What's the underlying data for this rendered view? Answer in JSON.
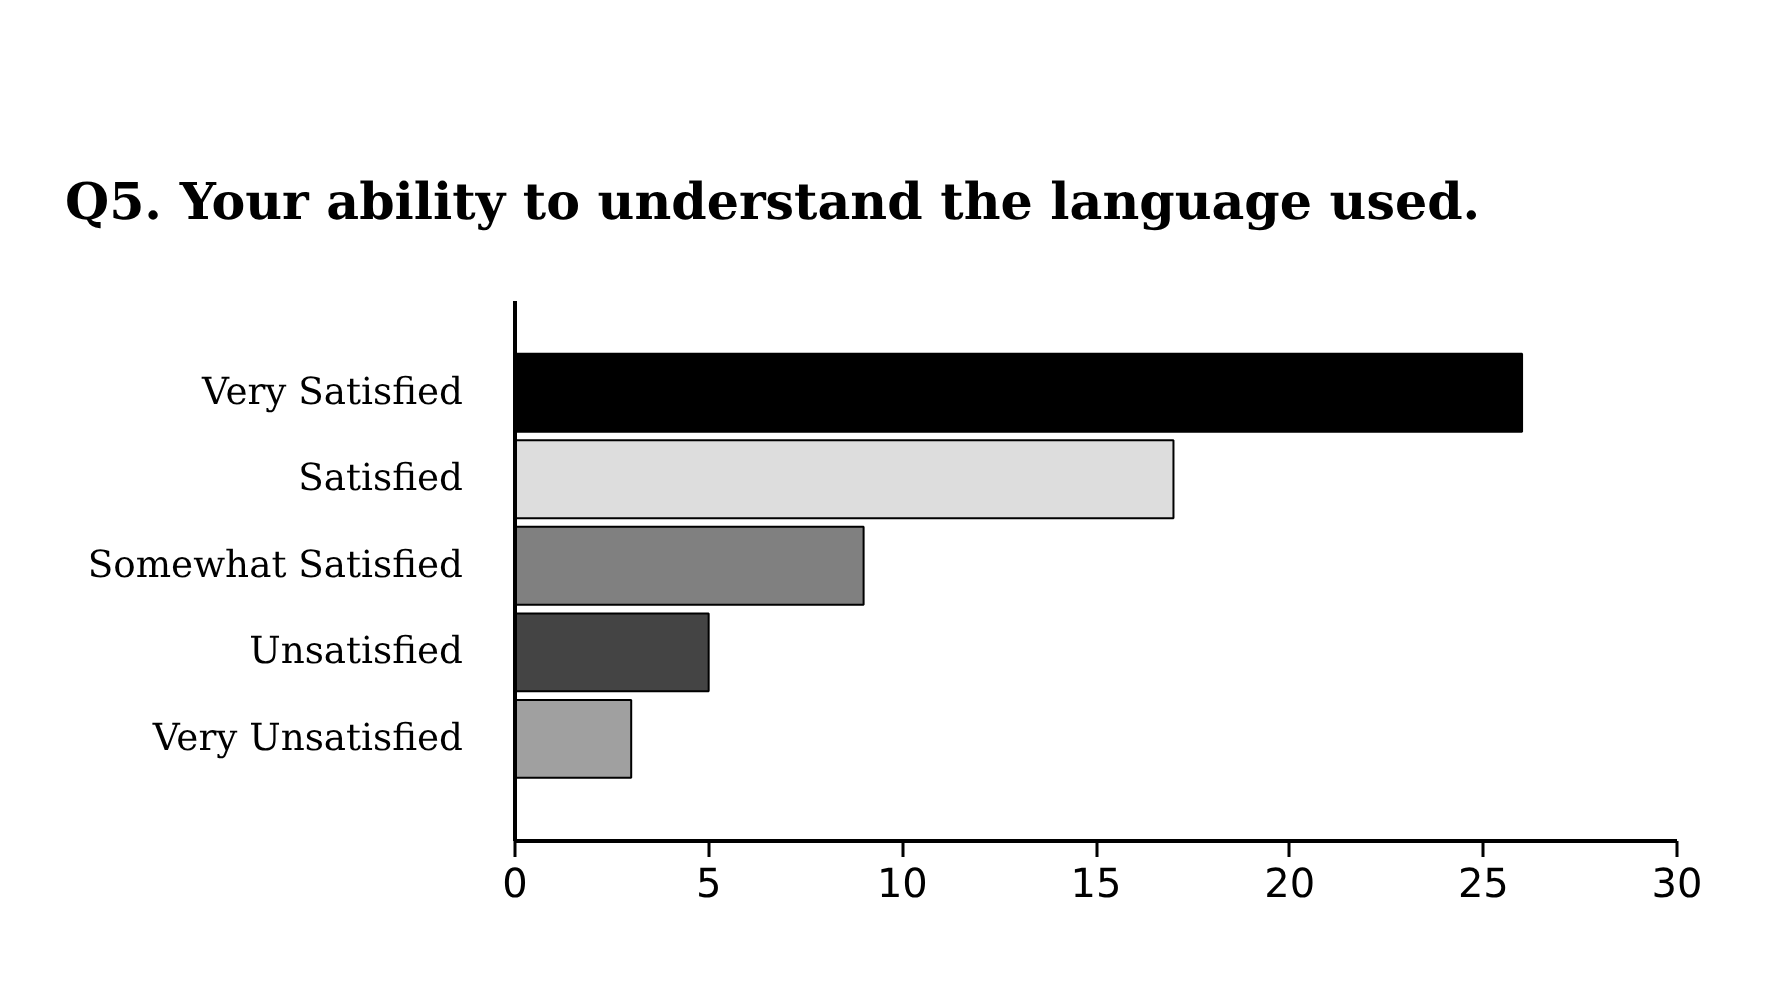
{
  "chart_data": {
    "type": "bar",
    "orientation": "horizontal",
    "title": "Q5. Your ability to understand the language used.",
    "categories": [
      "Very Satisfied",
      "Satisfied",
      "Somewhat Satisfied",
      "Unsatisfied",
      "Very Unsatisfied"
    ],
    "values": [
      26,
      17,
      9,
      5,
      3
    ],
    "colors": [
      "#000000",
      "#dddddd",
      "#808080",
      "#444444",
      "#a0a0a0"
    ],
    "xlim": [
      0,
      30
    ],
    "xticks": [
      0,
      5,
      10,
      15,
      20,
      25,
      30
    ],
    "grid": false
  }
}
